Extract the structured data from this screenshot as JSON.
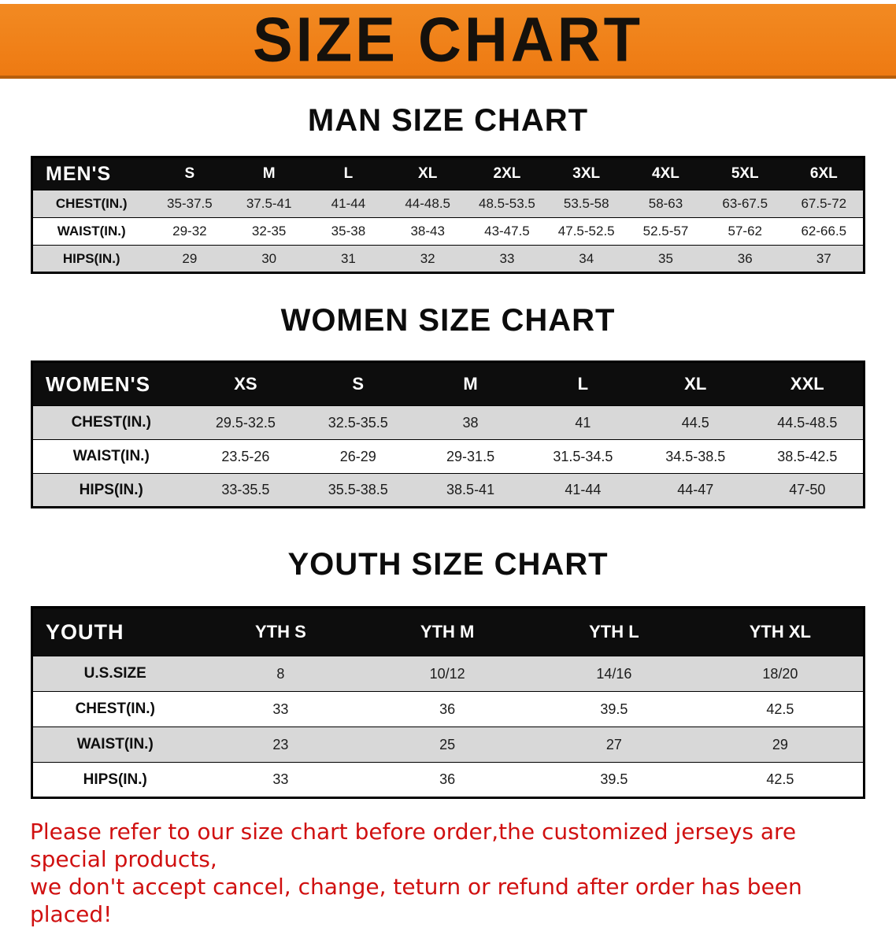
{
  "banner": {
    "title": "SIZE CHART"
  },
  "sections": [
    {
      "heading": "MAN SIZE CHART",
      "table": {
        "header": [
          "MEN'S",
          "S",
          "M",
          "L",
          "XL",
          "2XL",
          "3XL",
          "4XL",
          "5XL",
          "6XL"
        ],
        "rows": [
          {
            "label": "CHEST(IN.)",
            "values": [
              "35-37.5",
              "37.5-41",
              "41-44",
              "44-48.5",
              "48.5-53.5",
              "53.5-58",
              "58-63",
              "63-67.5",
              "67.5-72"
            ]
          },
          {
            "label": "WAIST(IN.)",
            "values": [
              "29-32",
              "32-35",
              "35-38",
              "38-43",
              "43-47.5",
              "47.5-52.5",
              "52.5-57",
              "57-62",
              "62-66.5"
            ]
          },
          {
            "label": "HIPS(IN.)",
            "values": [
              "29",
              "30",
              "31",
              "32",
              "33",
              "34",
              "35",
              "36",
              "37"
            ]
          }
        ]
      }
    },
    {
      "heading": "WOMEN SIZE CHART",
      "table": {
        "header": [
          "WOMEN'S",
          "XS",
          "S",
          "M",
          "L",
          "XL",
          "XXL"
        ],
        "rows": [
          {
            "label": "CHEST(IN.)",
            "values": [
              "29.5-32.5",
              "32.5-35.5",
              "38",
              "41",
              "44.5",
              "44.5-48.5"
            ]
          },
          {
            "label": "WAIST(IN.)",
            "values": [
              "23.5-26",
              "26-29",
              "29-31.5",
              "31.5-34.5",
              "34.5-38.5",
              "38.5-42.5"
            ]
          },
          {
            "label": "HIPS(IN.)",
            "values": [
              "33-35.5",
              "35.5-38.5",
              "38.5-41",
              "41-44",
              "44-47",
              "47-50"
            ]
          }
        ]
      }
    },
    {
      "heading": "YOUTH SIZE CHART",
      "table": {
        "header": [
          "YOUTH",
          "YTH S",
          "YTH M",
          "YTH L",
          "YTH XL"
        ],
        "rows": [
          {
            "label": "U.S.SIZE",
            "values": [
              "8",
              "10/12",
              "14/16",
              "18/20"
            ]
          },
          {
            "label": "CHEST(IN.)",
            "values": [
              "33",
              "36",
              "39.5",
              "42.5"
            ]
          },
          {
            "label": "WAIST(IN.)",
            "values": [
              "23",
              "25",
              "27",
              "29"
            ]
          },
          {
            "label": "HIPS(IN.)",
            "values": [
              "33",
              "36",
              "39.5",
              "42.5"
            ]
          }
        ]
      }
    }
  ],
  "footer": {
    "line1": "Please refer to our size chart before order,the customized jerseys are special products,",
    "line2": "we don't accept cancel, change, teturn or refund after order has been placed!"
  }
}
